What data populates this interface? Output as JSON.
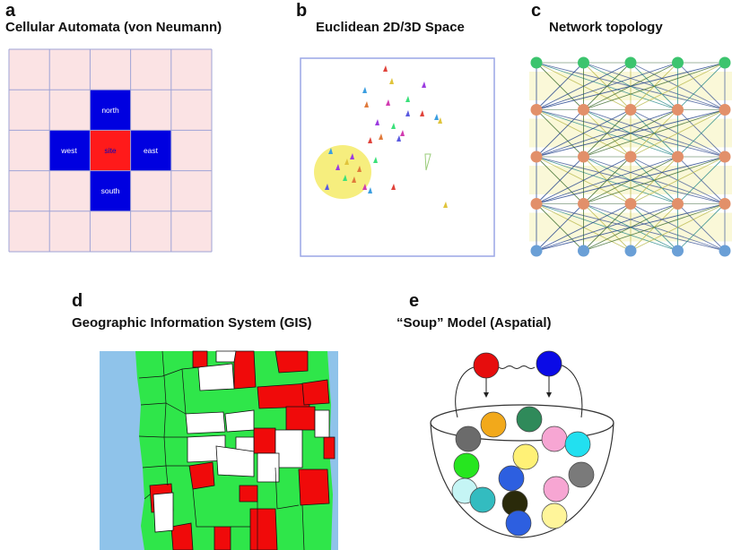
{
  "panels": {
    "a": {
      "letter": "a",
      "title": "Cellular Automata (von Neumann)",
      "cells": {
        "north": "north",
        "west": "west",
        "site": "site",
        "east": "east",
        "south": "south"
      }
    },
    "b": {
      "letter": "b",
      "title": "Euclidean 2D/3D Space"
    },
    "c": {
      "letter": "c",
      "title": "Network topology"
    },
    "d": {
      "letter": "d",
      "title": "Geographic Information System (GIS)"
    },
    "e": {
      "letter": "e",
      "title": "“Soup” Model (Aspatial)"
    }
  },
  "colors": {
    "grid_bg": "#fbe3e4",
    "grid_line": "#9fa3d6",
    "neighbor": "#0000e0",
    "site": "#ff1a1a",
    "space_border": "#9aa6e6",
    "space_circle": "#f6ee7e",
    "node_top": "#3cc46e",
    "node_mid": "#e2906a",
    "node_bottom": "#6a9fd6",
    "gis_water": "#8fc3ea",
    "gis_green": "#2fe64a",
    "gis_red": "#f00a0a",
    "soup_red": "#e60d0d",
    "soup_blue": "#0b0be6"
  },
  "network": {
    "layers": 5,
    "nodes_per_layer": 5,
    "layer_colors": [
      "#3cc46e",
      "#e2906a",
      "#e2906a",
      "#e2906a",
      "#6a9fd6"
    ]
  },
  "soup": {
    "top_balls": [
      "#e60d0d",
      "#0b0be6"
    ],
    "balls": [
      "#6b6b6b",
      "#f2a91b",
      "#2f8a5a",
      "#f7a6d3",
      "#22e0f0",
      "#26e61f",
      "#2d5fe0",
      "#fff176",
      "#7a7a7a",
      "#c5f5f5",
      "#33bcc0",
      "#2a2a0a",
      "#f7a6d3",
      "#2d5fe0",
      "#fff59a"
    ]
  }
}
